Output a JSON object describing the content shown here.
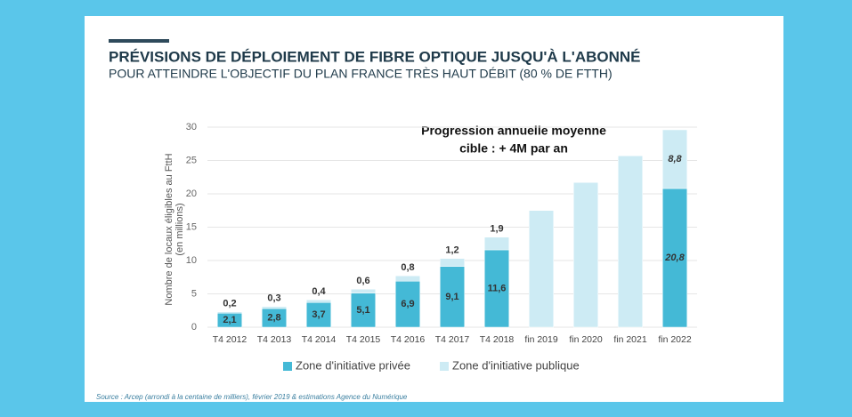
{
  "chart_data": {
    "type": "bar",
    "title": "PRÉVISIONS DE DÉPLOIEMENT DE FIBRE OPTIQUE JUSQU'À L'ABONNÉ",
    "subtitle": "POUR ATTEINDRE L'OBJECTIF DU PLAN FRANCE TRÈS HAUT DÉBIT (80 % DE FTTH)",
    "y_label": [
      "Nombre de locaux éligibles au FttH",
      "(en millions)"
    ],
    "annotation": [
      "Progression annuelle moyenne",
      "cible : + 4M par an"
    ],
    "source": "Source : Arcep (arrondi à la centaine de milliers), février 2019 & estimations Agence du Numérique",
    "categories": [
      "T4 2012",
      "T4 2013",
      "T4 2014",
      "T4 2015",
      "T4 2016",
      "T4 2017",
      "T4 2018",
      "fin 2019",
      "fin 2020",
      "fin 2021",
      "fin 2022"
    ],
    "stacked": true,
    "grid": true,
    "legend": "bottom",
    "series": [
      {
        "name": "Zone d'initiative privée",
        "color": "#44b9d6",
        "values": [
          2.1,
          2.8,
          3.7,
          5.1,
          6.9,
          9.1,
          11.6,
          null,
          null,
          null,
          20.8
        ],
        "value_labels": [
          "2,1",
          "2,8",
          "3,7",
          "5,1",
          "6,9",
          "9,1",
          "11,6",
          null,
          null,
          null,
          "20,8"
        ]
      },
      {
        "name": "Zone d'initiative publique",
        "color": "#cdebf4",
        "values": [
          0.2,
          0.3,
          0.4,
          0.6,
          0.8,
          1.2,
          1.9,
          17.5,
          21.7,
          25.7,
          8.8
        ],
        "value_labels": [
          "0,2",
          "0,3",
          "0,4",
          "0,6",
          "0,8",
          "1,2",
          "1,9",
          null,
          null,
          null,
          "8,8"
        ]
      }
    ],
    "ylim": [
      0,
      30
    ],
    "yticks": [
      0,
      5,
      10,
      15,
      20,
      25,
      30
    ]
  }
}
